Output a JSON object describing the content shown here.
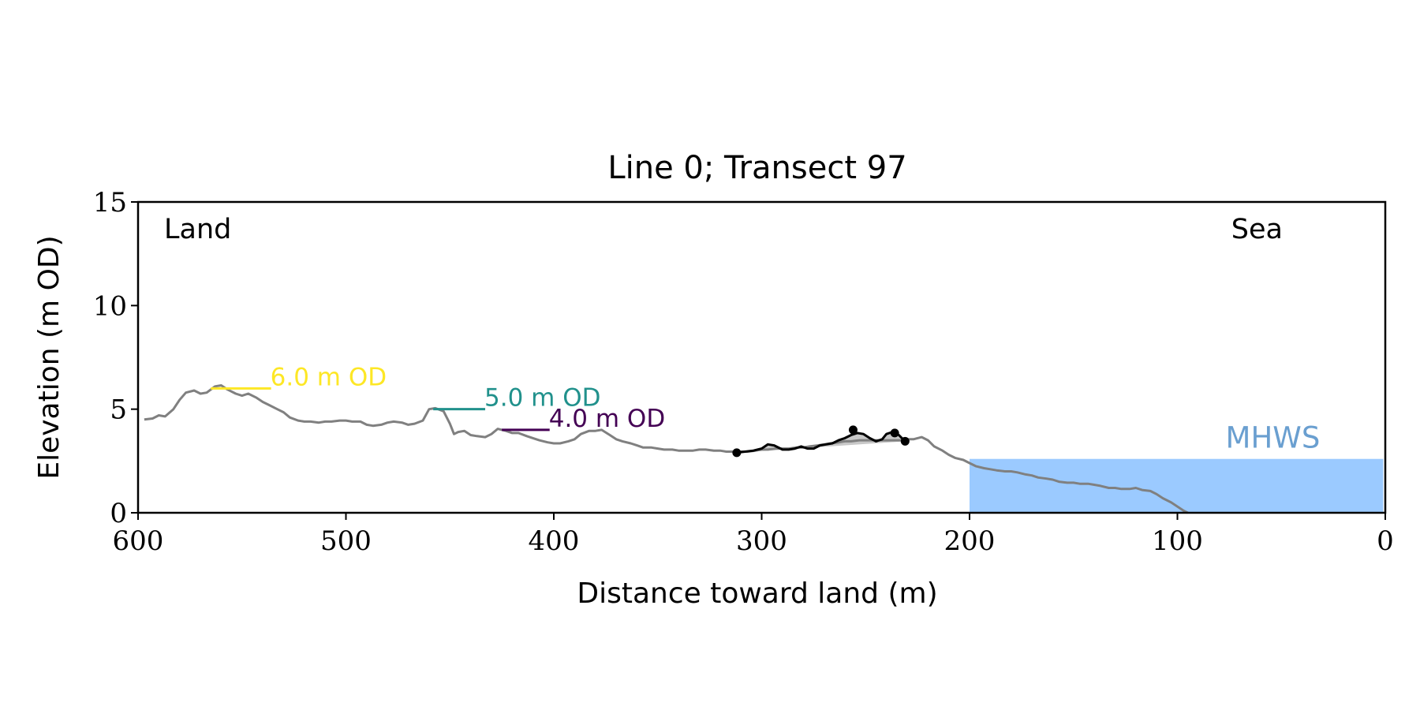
{
  "chart_data": {
    "type": "line",
    "title": "Line 0; Transect 97",
    "xlabel": "Distance toward land (m)",
    "ylabel": "Elevation (m OD)",
    "xlim": [
      600,
      0
    ],
    "ylim": [
      0,
      15
    ],
    "xticks": [
      600,
      500,
      400,
      300,
      200,
      100,
      0
    ],
    "yticks": [
      0,
      5,
      10,
      15
    ],
    "grid": false,
    "corner_labels": {
      "left": "Land",
      "right": "Sea"
    },
    "colors": {
      "profile": "#808080",
      "dune": "#000000",
      "dune_fill": "#c8c8c8",
      "sea": "#9bcaff",
      "mhws_label": "#6a9fd0",
      "level_6": "#fde725",
      "level_5": "#21918c",
      "level_4": "#440154"
    },
    "profile": {
      "x": [
        597,
        593,
        590,
        587,
        583,
        580,
        577,
        573,
        570,
        567,
        563,
        560,
        557,
        553,
        550,
        547,
        543,
        540,
        537,
        533,
        530,
        527,
        523,
        520,
        517,
        513,
        510,
        507,
        503,
        500,
        497,
        493,
        490,
        487,
        483,
        480,
        477,
        473,
        470,
        467,
        463,
        460,
        457,
        453,
        450,
        448,
        446,
        443,
        440,
        437,
        433,
        430,
        427,
        423,
        420,
        417,
        413,
        410,
        407,
        403,
        400,
        397,
        393,
        390,
        387,
        383,
        380,
        377,
        373,
        370,
        367,
        363,
        360,
        357,
        353,
        350,
        347,
        343,
        340,
        337,
        333,
        330,
        327,
        323,
        320,
        317,
        313,
        310,
        307,
        303,
        300,
        297,
        293,
        290,
        287,
        283,
        280,
        277,
        273,
        270,
        267,
        263,
        260,
        257,
        253,
        250,
        247,
        243,
        240,
        237,
        233,
        230,
        227,
        223,
        220,
        217,
        213,
        210,
        207,
        203,
        200,
        197,
        193,
        190,
        187,
        183,
        180,
        177,
        173,
        170,
        167,
        163,
        160,
        157,
        153,
        150,
        147,
        143,
        140,
        137,
        133,
        130,
        127,
        123,
        120,
        117,
        113,
        110,
        107,
        103,
        100,
        97,
        95
      ],
      "y": [
        4.5,
        4.55,
        4.7,
        4.65,
        5.0,
        5.45,
        5.8,
        5.9,
        5.75,
        5.8,
        6.1,
        6.15,
        5.95,
        5.75,
        5.65,
        5.75,
        5.55,
        5.35,
        5.2,
        5.0,
        4.85,
        4.6,
        4.45,
        4.4,
        4.4,
        4.35,
        4.4,
        4.4,
        4.45,
        4.45,
        4.4,
        4.4,
        4.25,
        4.2,
        4.25,
        4.35,
        4.4,
        4.35,
        4.25,
        4.3,
        4.45,
        5.0,
        5.05,
        4.9,
        4.3,
        3.8,
        3.9,
        3.95,
        3.75,
        3.7,
        3.65,
        3.8,
        4.05,
        3.95,
        3.85,
        3.85,
        3.7,
        3.6,
        3.5,
        3.4,
        3.35,
        3.35,
        3.45,
        3.55,
        3.8,
        3.95,
        3.95,
        4.0,
        3.75,
        3.55,
        3.45,
        3.35,
        3.25,
        3.15,
        3.15,
        3.1,
        3.05,
        3.05,
        3.0,
        3.0,
        3.0,
        3.05,
        3.05,
        3.0,
        3.0,
        2.95,
        2.95,
        2.95,
        2.95,
        3.0,
        3.05,
        3.05,
        3.1,
        3.1,
        3.1,
        3.15,
        3.15,
        3.2,
        3.25,
        3.3,
        3.35,
        3.4,
        3.45,
        3.45,
        3.5,
        3.5,
        3.5,
        3.5,
        3.5,
        3.5,
        3.5,
        3.55,
        3.55,
        3.65,
        3.5,
        3.2,
        3.0,
        2.8,
        2.65,
        2.55,
        2.4,
        2.25,
        2.15,
        2.1,
        2.05,
        2.0,
        2.0,
        1.95,
        1.85,
        1.8,
        1.7,
        1.65,
        1.6,
        1.5,
        1.45,
        1.45,
        1.4,
        1.4,
        1.35,
        1.3,
        1.2,
        1.2,
        1.15,
        1.15,
        1.2,
        1.1,
        1.05,
        0.9,
        0.7,
        0.5,
        0.3,
        0.1,
        0.0
      ]
    },
    "dune": {
      "x": [
        312,
        308,
        304,
        300,
        297,
        294,
        290,
        287,
        284,
        281,
        278,
        275,
        272,
        269,
        266,
        263,
        260,
        257,
        254,
        251,
        248,
        245,
        242,
        240,
        237,
        234,
        231
      ],
      "y": [
        2.9,
        2.95,
        3.0,
        3.1,
        3.3,
        3.25,
        3.05,
        3.05,
        3.1,
        3.2,
        3.1,
        3.1,
        3.25,
        3.3,
        3.35,
        3.5,
        3.6,
        3.75,
        3.85,
        3.8,
        3.6,
        3.45,
        3.55,
        3.8,
        3.9,
        3.75,
        3.45
      ],
      "baseline": [
        [
          312,
          2.9
        ],
        [
          231,
          3.45
        ]
      ],
      "markers": [
        [
          312,
          2.9
        ],
        [
          256,
          4.0
        ],
        [
          236,
          3.85
        ],
        [
          231,
          3.45
        ]
      ]
    },
    "levels": [
      {
        "label": "6.0 m OD",
        "y": 6.0,
        "x_range": [
          565,
          536
        ],
        "color_key": "level_6"
      },
      {
        "label": "5.0 m OD",
        "y": 5.0,
        "x_range": [
          458,
          433
        ],
        "color_key": "level_5"
      },
      {
        "label": "4.0 m OD",
        "y": 4.0,
        "x_range": [
          425,
          402
        ],
        "color_key": "level_4"
      }
    ],
    "sea": {
      "label": "MHWS",
      "level": 2.6,
      "x_range": [
        200,
        1
      ]
    }
  }
}
